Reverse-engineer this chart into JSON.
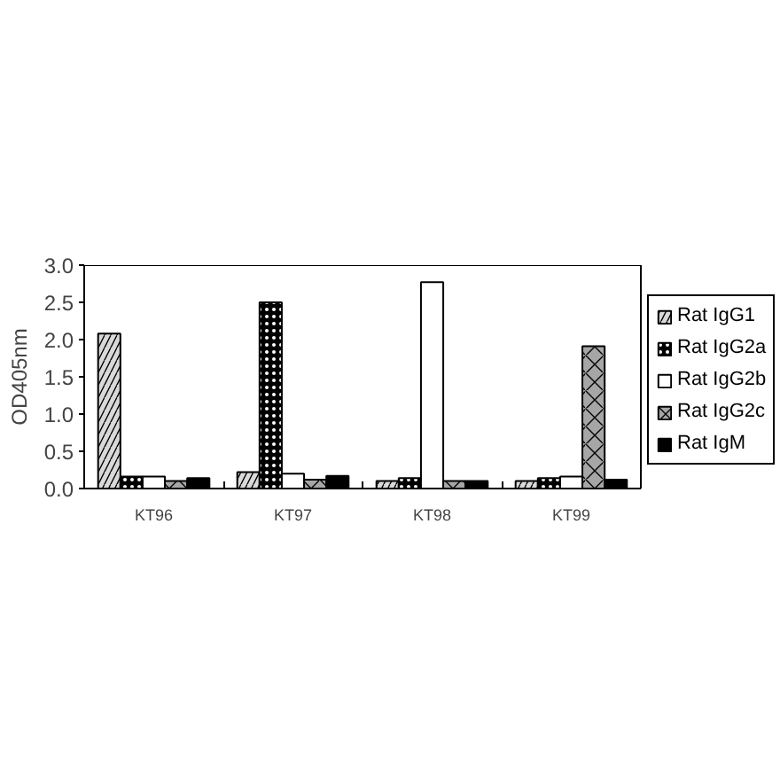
{
  "chart_data": {
    "type": "bar",
    "ylabel": "OD405nm",
    "categories": [
      "KT96",
      "KT97",
      "KT98",
      "KT99"
    ],
    "series": [
      {
        "name": "Rat IgG1",
        "color": "#d9d9d9",
        "values": [
          2.08,
          0.22,
          0.1,
          0.1
        ]
      },
      {
        "name": "Rat IgG2a",
        "color": "#000000",
        "values": [
          0.16,
          2.5,
          0.14,
          0.14
        ]
      },
      {
        "name": "Rat IgG2b",
        "color": "#ffffff",
        "values": [
          0.16,
          0.2,
          2.77,
          0.16
        ]
      },
      {
        "name": "Rat IgG2c",
        "color": "#a6a6a6",
        "values": [
          0.1,
          0.12,
          0.1,
          1.91
        ]
      },
      {
        "name": "Rat IgM",
        "color": "#000000",
        "values": [
          0.14,
          0.17,
          0.1,
          0.12
        ]
      }
    ],
    "ylim": [
      0,
      3
    ],
    "yticks": [
      {
        "value": 0,
        "label": "0.0"
      },
      {
        "value": 0.5,
        "label": "0.5"
      },
      {
        "value": 1,
        "label": "1.0"
      },
      {
        "value": 1.5,
        "label": "1.5"
      },
      {
        "value": 2,
        "label": "2.0"
      },
      {
        "value": 2.5,
        "label": "2.5"
      },
      {
        "value": 3,
        "label": "3.0"
      }
    ],
    "grid": false,
    "legend": "right"
  }
}
